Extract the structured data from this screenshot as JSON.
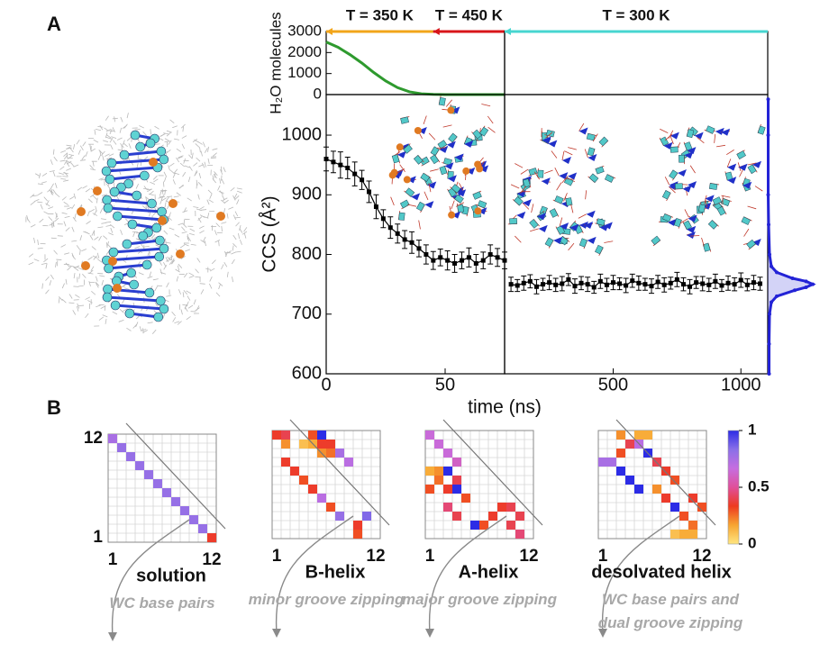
{
  "panels": {
    "a": "A",
    "b": "B"
  },
  "chart_data": [
    {
      "type": "line",
      "ylabel": "H₂O molecules",
      "x": [
        0,
        5,
        10,
        15,
        20,
        25,
        30,
        35,
        40,
        45,
        50,
        55,
        60,
        65,
        70,
        75
      ],
      "series": [
        {
          "color": "#2e9a2e",
          "values": [
            2500,
            2250,
            1900,
            1500,
            1050,
            650,
            330,
            130,
            40,
            10,
            2,
            0,
            0,
            0,
            0,
            0
          ]
        }
      ],
      "xlim": [
        0,
        75
      ],
      "ylim": [
        0,
        3000
      ],
      "yticks": [
        0,
        1000,
        2000,
        3000
      ],
      "annotations": [
        {
          "text": "T = 350 K",
          "color": "#f2a51a",
          "x": [
            0,
            45
          ]
        },
        {
          "text": "T = 450 K",
          "color": "#d8151a",
          "x": [
            45,
            75
          ]
        }
      ]
    },
    {
      "type": "line",
      "xlim": [
        75,
        1105
      ],
      "ylim": [
        0,
        3000
      ],
      "annotations": [
        {
          "text": "T = 300 K",
          "color": "#47d6d0",
          "x": [
            75,
            1105
          ]
        }
      ]
    },
    {
      "type": "line",
      "ylabel": "CCS (Å²)",
      "x": [
        0,
        3,
        6,
        9,
        12,
        15,
        18,
        21,
        24,
        27,
        30,
        33,
        36,
        39,
        42,
        45,
        48,
        51,
        54,
        57,
        60,
        63,
        66,
        69,
        72,
        75
      ],
      "series": [
        {
          "color": "#000000",
          "values": [
            960,
            955,
            950,
            945,
            935,
            925,
            905,
            880,
            860,
            845,
            835,
            825,
            820,
            810,
            800,
            790,
            795,
            790,
            785,
            790,
            795,
            785,
            790,
            800,
            795,
            790
          ],
          "errors": [
            20,
            18,
            22,
            18,
            20,
            16,
            18,
            20,
            15,
            18,
            16,
            15,
            18,
            14,
            16,
            15,
            14,
            16,
            15,
            14,
            16,
            15,
            14,
            16,
            15,
            14
          ]
        }
      ],
      "xlim": [
        0,
        75
      ],
      "ylim": [
        600,
        1068
      ],
      "yticks": [
        600,
        700,
        800,
        900,
        1000
      ],
      "xticks": [
        0,
        50
      ]
    },
    {
      "type": "line",
      "xlabel": "time (ns)",
      "x": [
        100,
        125,
        150,
        175,
        200,
        225,
        250,
        275,
        300,
        325,
        350,
        375,
        400,
        425,
        450,
        475,
        500,
        525,
        550,
        575,
        600,
        625,
        650,
        675,
        700,
        725,
        750,
        775,
        800,
        825,
        850,
        875,
        900,
        925,
        950,
        975,
        1000,
        1025,
        1050,
        1075
      ],
      "series": [
        {
          "color": "#000000",
          "values": [
            750,
            748,
            752,
            755,
            746,
            750,
            753,
            749,
            751,
            758,
            747,
            752,
            750,
            745,
            755,
            749,
            753,
            751,
            748,
            756,
            752,
            750,
            747,
            754,
            749,
            752,
            758,
            750,
            746,
            753,
            751,
            749,
            755,
            748,
            752,
            750,
            757,
            749,
            753,
            751
          ],
          "errors": [
            12,
            10,
            12,
            11,
            12,
            10,
            12,
            11,
            12,
            10,
            12,
            11,
            12,
            10,
            12,
            11,
            12,
            10,
            12,
            11,
            12,
            10,
            12,
            11,
            12,
            10,
            12,
            11,
            12,
            10,
            12,
            11,
            12,
            10,
            12,
            11,
            12,
            10,
            12,
            11
          ]
        }
      ],
      "xlim": [
        75,
        1105
      ],
      "ylim": [
        600,
        1068
      ],
      "xticks": [
        500,
        1000
      ]
    },
    {
      "type": "line",
      "orientation": "vertical",
      "x": [
        600,
        650,
        700,
        720,
        730,
        740,
        745,
        750,
        755,
        760,
        770,
        780,
        800,
        850,
        900,
        1000,
        1060
      ],
      "series": [
        {
          "color": "#2323d6",
          "values": [
            0.03,
            0.03,
            0.04,
            0.08,
            0.2,
            0.6,
            0.85,
            1,
            0.85,
            0.55,
            0.2,
            0.08,
            0.04,
            0.02,
            0.01,
            0.01,
            0.01
          ]
        }
      ],
      "xlim": [
        600,
        1068
      ],
      "ylim": [
        0,
        1
      ]
    },
    {
      "type": "heatmap",
      "title": "solution",
      "caption": "WC base pairs",
      "xlim": [
        0.5,
        12.5
      ],
      "ylim": [
        0.5,
        12.5
      ],
      "xticks": [
        1,
        12
      ],
      "yticks": [
        1,
        12
      ],
      "cells": [
        [
          1,
          12,
          0.75
        ],
        [
          2,
          11,
          0.8
        ],
        [
          3,
          10,
          0.8
        ],
        [
          4,
          9,
          0.8
        ],
        [
          5,
          8,
          0.8
        ],
        [
          6,
          7,
          0.8
        ],
        [
          7,
          6,
          0.8
        ],
        [
          8,
          5,
          0.8
        ],
        [
          9,
          4,
          0.8
        ],
        [
          10,
          3,
          0.8
        ],
        [
          11,
          2,
          0.8
        ],
        [
          12,
          1,
          0.35
        ]
      ]
    },
    {
      "type": "heatmap",
      "title": "B-helix",
      "caption": "minor groove zipping",
      "xlim": [
        0.5,
        12.5
      ],
      "ylim": [
        0.5,
        12.5
      ],
      "xticks": [
        1,
        12
      ],
      "cells": [
        [
          1,
          12,
          0.35
        ],
        [
          2,
          11,
          0.2
        ],
        [
          2,
          12,
          0.4
        ],
        [
          5,
          12,
          0.3
        ],
        [
          6,
          12,
          1
        ],
        [
          4,
          11,
          0.1
        ],
        [
          5,
          11,
          0.15
        ],
        [
          6,
          11,
          0.35
        ],
        [
          7,
          11,
          0.35
        ],
        [
          8,
          10,
          0.75
        ],
        [
          6,
          10,
          0.2
        ],
        [
          7,
          10,
          0.25
        ],
        [
          9,
          9,
          0.7
        ],
        [
          2,
          9,
          0.35
        ],
        [
          3,
          8,
          0.35
        ],
        [
          4,
          7,
          0.3
        ],
        [
          5,
          6,
          0.35
        ],
        [
          6,
          5,
          0.7
        ],
        [
          7,
          4,
          0.3
        ],
        [
          8,
          3,
          0.8
        ],
        [
          11,
          3,
          0.85
        ],
        [
          10,
          2,
          0.35
        ],
        [
          10,
          1,
          0.3
        ]
      ]
    },
    {
      "type": "heatmap",
      "title": "A-helix",
      "caption": "major groove zipping",
      "xlim": [
        0.5,
        12.5
      ],
      "ylim": [
        0.5,
        12.5
      ],
      "xticks": [
        1,
        12
      ],
      "cells": [
        [
          1,
          12,
          0.65
        ],
        [
          2,
          11,
          0.65
        ],
        [
          3,
          10,
          0.65
        ],
        [
          4,
          9,
          0.6
        ],
        [
          1,
          8,
          0.15
        ],
        [
          2,
          8,
          0.2
        ],
        [
          3,
          8,
          1
        ],
        [
          2,
          7,
          0.25
        ],
        [
          4,
          7,
          0.4
        ],
        [
          1,
          6,
          0.3
        ],
        [
          3,
          6,
          0.35
        ],
        [
          4,
          6,
          1
        ],
        [
          5,
          5,
          0.3
        ],
        [
          9,
          4,
          0.35
        ],
        [
          10,
          4,
          0.4
        ],
        [
          8,
          3,
          0.35
        ],
        [
          11,
          3,
          0.4
        ],
        [
          3,
          4,
          0.45
        ],
        [
          4,
          3,
          0.4
        ],
        [
          7,
          2,
          0.3
        ],
        [
          6,
          2,
          1
        ],
        [
          10,
          2,
          0.4
        ],
        [
          11,
          1,
          0.45
        ]
      ]
    },
    {
      "type": "heatmap",
      "title": "desolvated helix",
      "caption": "WC base pairs and dual groove zipping",
      "xlim": [
        0.5,
        12.5
      ],
      "ylim": [
        0.5,
        12.5
      ],
      "xticks": [
        1,
        12
      ],
      "cells": [
        [
          3,
          12,
          0.2
        ],
        [
          5,
          12,
          0.15
        ],
        [
          6,
          12,
          0.15
        ],
        [
          4,
          11,
          0.4
        ],
        [
          5,
          11,
          0.7
        ],
        [
          3,
          10,
          0.3
        ],
        [
          6,
          10,
          1
        ],
        [
          1,
          9,
          0.75
        ],
        [
          2,
          9,
          0.75
        ],
        [
          7,
          9,
          0.4
        ],
        [
          3,
          8,
          1
        ],
        [
          8,
          8,
          0.35
        ],
        [
          4,
          7,
          1
        ],
        [
          9,
          7,
          0.3
        ],
        [
          5,
          6,
          1
        ],
        [
          7,
          6,
          0.2
        ],
        [
          11,
          5,
          0.35
        ],
        [
          8,
          5,
          0.35
        ],
        [
          9,
          4,
          1
        ],
        [
          12,
          4,
          0.3
        ],
        [
          10,
          3,
          0.3
        ],
        [
          11,
          2,
          0.25
        ],
        [
          9,
          1,
          0.1
        ],
        [
          10,
          1,
          0.15
        ],
        [
          11,
          1,
          0.15
        ]
      ]
    },
    {
      "type": "colorbar",
      "colors": [
        "#ffe680",
        "#f7a531",
        "#ee3a1f",
        "#e0509a",
        "#c66ee0",
        "#8a70e8",
        "#2c2ce6"
      ],
      "ylim": [
        0,
        1
      ],
      "yticks": [
        0,
        0.5,
        1
      ]
    }
  ]
}
